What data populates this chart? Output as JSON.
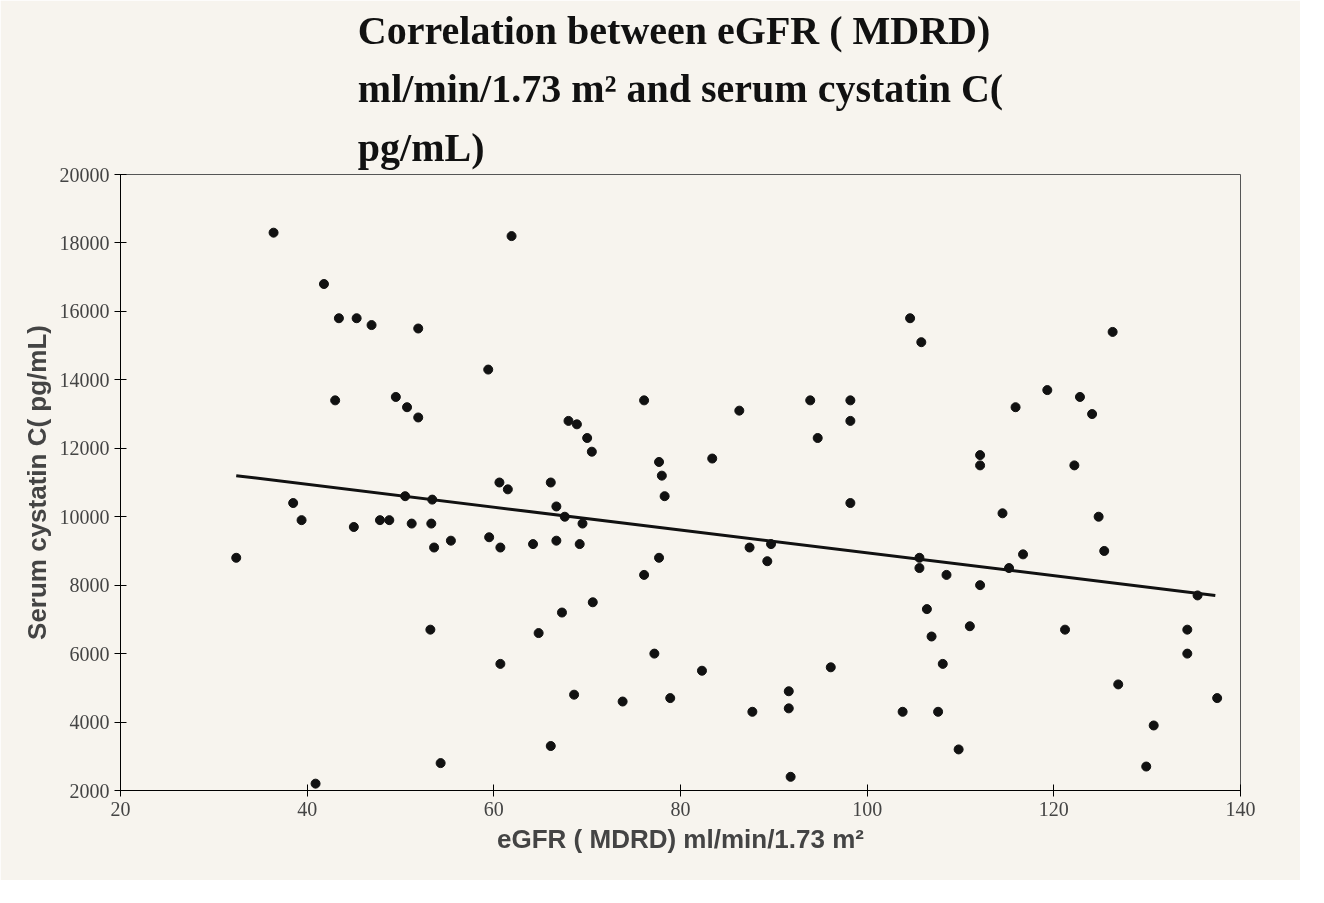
{
  "chart_data": {
    "type": "scatter",
    "title": "Correlation between eGFR ( MDRD) ml/min/1.73 m² and serum cystatin C( pg/mL)",
    "xlabel": "eGFR ( MDRD) ml/min/1.73 m²",
    "ylabel": "Serum cystatin C( pg/mL)",
    "xlim": [
      20,
      140
    ],
    "ylim": [
      2000,
      20000
    ],
    "xticks": [
      20,
      40,
      60,
      80,
      100,
      120,
      140
    ],
    "yticks": [
      2000,
      4000,
      6000,
      8000,
      10000,
      12000,
      14000,
      16000,
      18000,
      20000
    ],
    "grid": false,
    "series": [
      {
        "color": "#111111",
        "marker": "circle",
        "x": [
          32.4,
          36.4,
          38.5,
          39.4,
          40.9,
          41.8,
          43.4,
          45.3,
          46.9,
          51.9,
          59.4,
          43.0,
          49.5,
          50.7,
          51.9,
          60.6,
          61.5,
          50.5,
          53.4,
          45.0,
          47.8,
          48.8,
          51.2,
          53.3,
          53.6,
          55.4,
          59.5,
          60.7,
          53.2,
          60.7,
          54.3,
          61.9,
          64.2,
          64.8,
          66.1,
          66.1,
          66.7,
          66.7,
          67.3,
          67.6,
          68.0,
          68.9,
          70.0,
          70.5,
          69.5,
          69.2,
          68.6,
          70.6,
          73.8,
          76.1,
          76.1,
          77.2,
          77.7,
          78.0,
          78.3,
          77.7,
          78.9,
          82.3,
          83.4,
          86.3,
          87.4,
          89.7,
          89.3,
          87.7,
          91.6,
          91.6,
          91.8,
          93.9,
          94.7,
          96.1,
          98.2,
          98.2,
          98.2,
          103.8,
          104.6,
          105.8,
          105.6,
          105.6,
          106.4,
          106.9,
          108.1,
          107.6,
          108.5,
          109.8,
          111.0,
          112.1,
          112.1,
          112.1,
          114.5,
          115.2,
          115.9,
          116.7,
          119.3,
          121.2,
          122.2,
          122.8,
          124.1,
          124.8,
          125.4,
          126.3,
          126.9,
          129.9,
          130.7,
          134.3,
          134.3,
          135.4,
          137.5
        ],
        "values": [
          8800,
          18300,
          10400,
          9900,
          2200,
          16800,
          15800,
          15800,
          15600,
          15500,
          14300,
          13400,
          13500,
          13200,
          12900,
          11000,
          10800,
          10600,
          10500,
          9700,
          9900,
          9900,
          9800,
          9800,
          9100,
          9300,
          9400,
          9100,
          6700,
          5700,
          2800,
          18200,
          9200,
          6600,
          11000,
          3300,
          10300,
          9300,
          7200,
          10000,
          12800,
          12700,
          12300,
          11900,
          9800,
          9200,
          4800,
          7500,
          4600,
          13400,
          8300,
          6000,
          11600,
          11200,
          10600,
          8800,
          4700,
          5500,
          11700,
          13100,
          9100,
          9200,
          8700,
          4300,
          4900,
          4400,
          2400,
          13400,
          12300,
          5600,
          13400,
          12800,
          10400,
          4300,
          15800,
          15100,
          8800,
          8500,
          7300,
          6500,
          5700,
          4300,
          8300,
          3200,
          6800,
          11800,
          11500,
          8000,
          10100,
          8500,
          13200,
          8900,
          13700,
          6700,
          11500,
          13500,
          13000,
          10000,
          9000,
          15400,
          5100,
          2700,
          3900,
          6700,
          6000,
          7700,
          4700
        ]
      },
      {
        "type": "line",
        "color": "#111111",
        "line_style": "solid",
        "marker": "none",
        "x": [
          32.4,
          137.3
        ],
        "values": [
          11200,
          7700
        ]
      }
    ]
  }
}
